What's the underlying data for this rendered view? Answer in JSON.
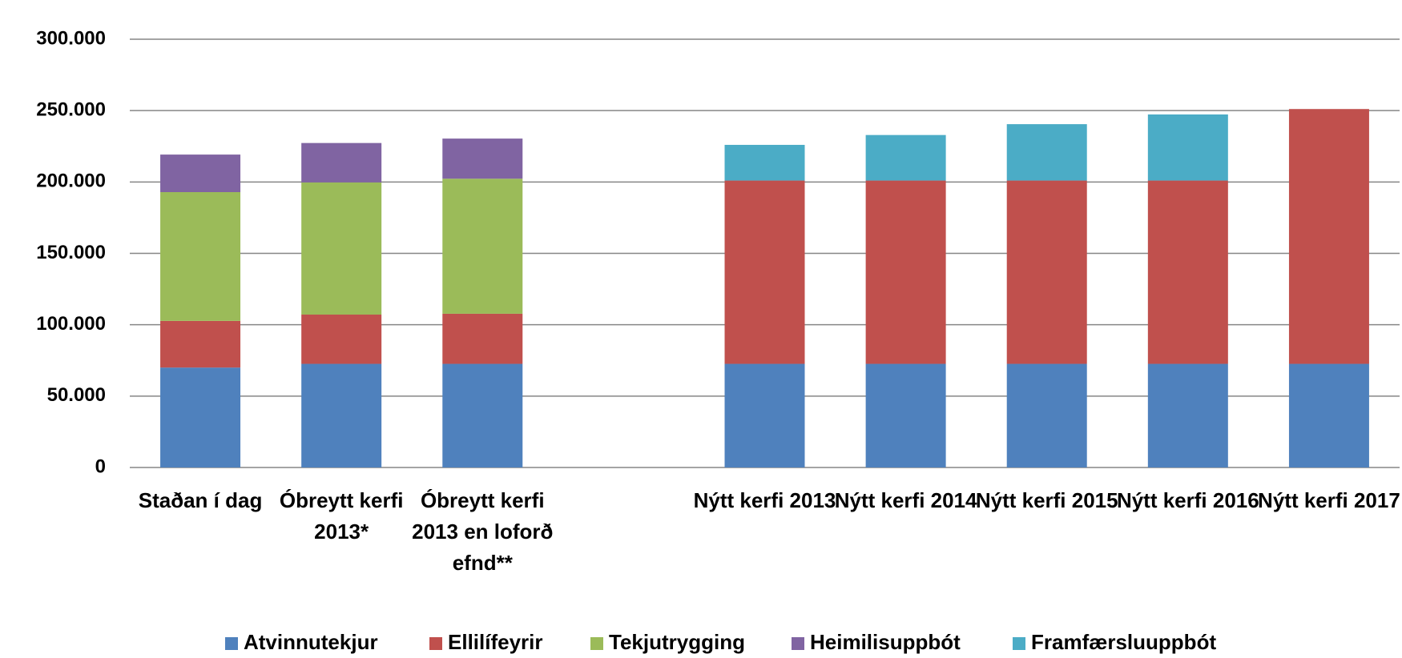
{
  "chart_data": {
    "type": "stacked_bar",
    "categories": [
      "Staðan í dag",
      "Óbreytt kerfi 2013*",
      "Óbreytt kerfi 2013 en loforð efnd**",
      null,
      "Nýtt kerfi 2013",
      "Nýtt kerfi 2014",
      "Nýtt kerfi 2015",
      "Nýtt kerfi 2016",
      "Nýtt kerfi 2017"
    ],
    "series": [
      {
        "name": "Atvinnutekjur",
        "color": "#4f81bd",
        "values": [
          70000,
          72600,
          72600,
          null,
          72600,
          72600,
          72600,
          72600,
          72600
        ]
      },
      {
        "name": "Ellilífeyrir",
        "color": "#c0504d",
        "values": [
          32700,
          34500,
          35100,
          null,
          128400,
          128400,
          128400,
          128400,
          178500
        ]
      },
      {
        "name": "Tekjutrygging",
        "color": "#9bbb59",
        "values": [
          90200,
          92600,
          94600,
          null,
          null,
          null,
          null,
          null,
          null
        ]
      },
      {
        "name": "Heimilisuppbót",
        "color": "#8064a2",
        "values": [
          26300,
          27600,
          28100,
          null,
          null,
          null,
          null,
          null,
          null
        ]
      },
      {
        "name": "Framfærsluuppbót",
        "color": "#4bacc6",
        "values": [
          null,
          null,
          null,
          null,
          25000,
          31900,
          39500,
          46300,
          null
        ]
      }
    ],
    "ylim": [
      0,
      300000
    ],
    "yticks": [
      0,
      {
        "value": 50000,
        "label": "50.000"
      },
      {
        "value": 100000,
        "label": "100.000"
      },
      {
        "value": 150000,
        "label": "150.000"
      },
      {
        "value": 200000,
        "label": "200.000"
      },
      {
        "value": 250000,
        "label": "250.000"
      },
      {
        "value": 300000,
        "label": "300.000"
      }
    ],
    "grid": true,
    "legend": "bottom"
  }
}
